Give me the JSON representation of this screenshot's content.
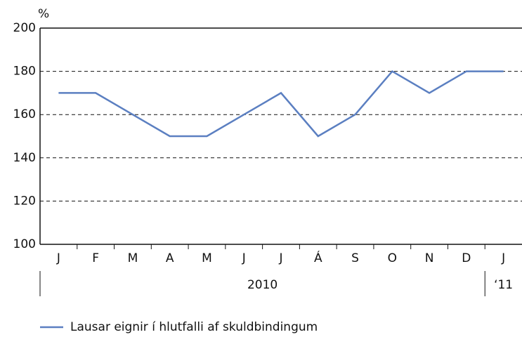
{
  "chart_data": {
    "type": "line",
    "y_label": "%",
    "categories": [
      "J",
      "F",
      "M",
      "A",
      "M",
      "J",
      "J",
      "Á",
      "S",
      "O",
      "N",
      "D",
      "J"
    ],
    "groups": [
      {
        "label": "2010",
        "count": 12
      },
      {
        "label": "‘11",
        "count": 1
      }
    ],
    "series": [
      {
        "name": "Lausar eignir í hlutfalli af skuldbindingum",
        "color": "#5b7fc1",
        "values": [
          170,
          170,
          160,
          150,
          150,
          160,
          170,
          150,
          160,
          180,
          170,
          180,
          180
        ]
      }
    ],
    "ylim": [
      100,
      200
    ],
    "yticks": [
      100,
      120,
      140,
      160,
      180,
      200
    ],
    "grid": true
  }
}
